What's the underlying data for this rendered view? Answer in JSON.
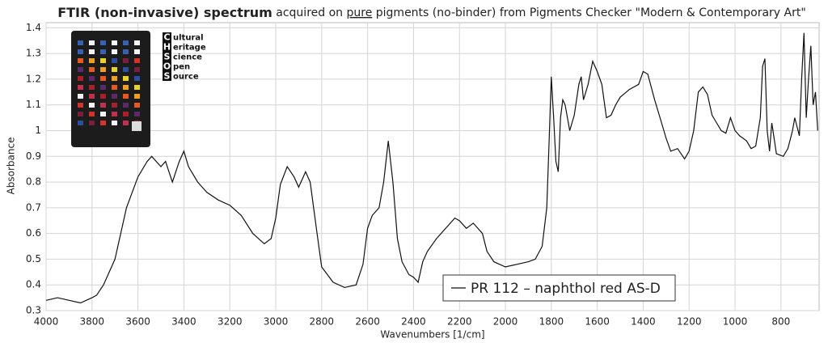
{
  "chart_data": {
    "type": "line",
    "title_bold": "FTIR (non-invasive) spectrum",
    "title_parts": [
      "acquired on",
      "pure",
      "pigments (no-binder) from Pigments Checker \"Modern & Contemporary Art\""
    ],
    "logo": {
      "initials": [
        "C",
        "H",
        "S",
        "O",
        "S"
      ],
      "rest": [
        "ultural",
        "eritage",
        "cience",
        "pen",
        "ource"
      ]
    },
    "ylabel": "Absorbance",
    "xlabel": "Wavenumbers [1/cm]",
    "xlim": [
      4000,
      634
    ],
    "ylim": [
      0.3,
      1.42
    ],
    "xticks": [
      4000,
      3800,
      3600,
      3400,
      3200,
      3000,
      2800,
      2600,
      2400,
      2200,
      2000,
      1800,
      1600,
      1400,
      1200,
      1000,
      800
    ],
    "yticks": [
      0.3,
      0.4,
      0.5,
      0.6,
      0.7,
      0.8,
      0.9,
      1,
      1.1,
      1.2,
      1.3,
      1.4
    ],
    "grid": true,
    "legend": "lower-right",
    "x": [
      4000,
      3950,
      3900,
      3850,
      3800,
      3780,
      3750,
      3700,
      3650,
      3600,
      3560,
      3540,
      3500,
      3480,
      3450,
      3420,
      3400,
      3380,
      3340,
      3300,
      3250,
      3200,
      3150,
      3100,
      3050,
      3020,
      3000,
      2980,
      2950,
      2920,
      2900,
      2870,
      2850,
      2820,
      2800,
      2750,
      2700,
      2650,
      2620,
      2600,
      2580,
      2550,
      2530,
      2510,
      2490,
      2470,
      2450,
      2420,
      2400,
      2380,
      2360,
      2340,
      2300,
      2250,
      2220,
      2200,
      2170,
      2140,
      2100,
      2080,
      2050,
      2000,
      1950,
      1900,
      1870,
      1840,
      1820,
      1810,
      1800,
      1790,
      1780,
      1770,
      1760,
      1750,
      1740,
      1720,
      1700,
      1680,
      1670,
      1660,
      1640,
      1620,
      1600,
      1580,
      1560,
      1540,
      1520,
      1500,
      1460,
      1420,
      1400,
      1380,
      1350,
      1320,
      1300,
      1280,
      1250,
      1220,
      1200,
      1180,
      1160,
      1140,
      1120,
      1100,
      1080,
      1060,
      1040,
      1020,
      1000,
      980,
      950,
      930,
      910,
      890,
      880,
      870,
      860,
      850,
      840,
      820,
      790,
      770,
      750,
      740,
      720,
      710,
      700,
      690,
      680,
      670,
      660,
      650,
      640
    ],
    "series": [
      {
        "name": "PR 112 – naphthol red AS-D",
        "color": "#111111",
        "values": [
          0.34,
          0.35,
          0.34,
          0.33,
          0.35,
          0.36,
          0.4,
          0.5,
          0.7,
          0.82,
          0.88,
          0.9,
          0.86,
          0.88,
          0.8,
          0.88,
          0.92,
          0.86,
          0.8,
          0.76,
          0.73,
          0.71,
          0.67,
          0.6,
          0.56,
          0.58,
          0.66,
          0.79,
          0.86,
          0.82,
          0.78,
          0.84,
          0.8,
          0.6,
          0.47,
          0.41,
          0.39,
          0.4,
          0.48,
          0.62,
          0.67,
          0.7,
          0.8,
          0.96,
          0.8,
          0.58,
          0.49,
          0.44,
          0.43,
          0.41,
          0.49,
          0.53,
          0.58,
          0.63,
          0.66,
          0.65,
          0.62,
          0.64,
          0.6,
          0.53,
          0.49,
          0.47,
          0.48,
          0.49,
          0.5,
          0.55,
          0.7,
          0.95,
          1.21,
          1.05,
          0.88,
          0.84,
          1.05,
          1.12,
          1.1,
          1.0,
          1.06,
          1.18,
          1.21,
          1.12,
          1.18,
          1.27,
          1.23,
          1.18,
          1.05,
          1.06,
          1.1,
          1.13,
          1.16,
          1.18,
          1.23,
          1.22,
          1.12,
          1.03,
          0.97,
          0.92,
          0.93,
          0.89,
          0.92,
          1.0,
          1.15,
          1.17,
          1.14,
          1.06,
          1.03,
          1.0,
          0.99,
          1.05,
          1.0,
          0.98,
          0.96,
          0.93,
          0.94,
          1.05,
          1.25,
          1.28,
          1.0,
          0.92,
          1.03,
          0.91,
          0.9,
          0.93,
          1.0,
          1.05,
          0.98,
          1.2,
          1.38,
          1.05,
          1.2,
          1.33,
          1.1,
          1.15,
          1.0
        ]
      }
    ]
  }
}
